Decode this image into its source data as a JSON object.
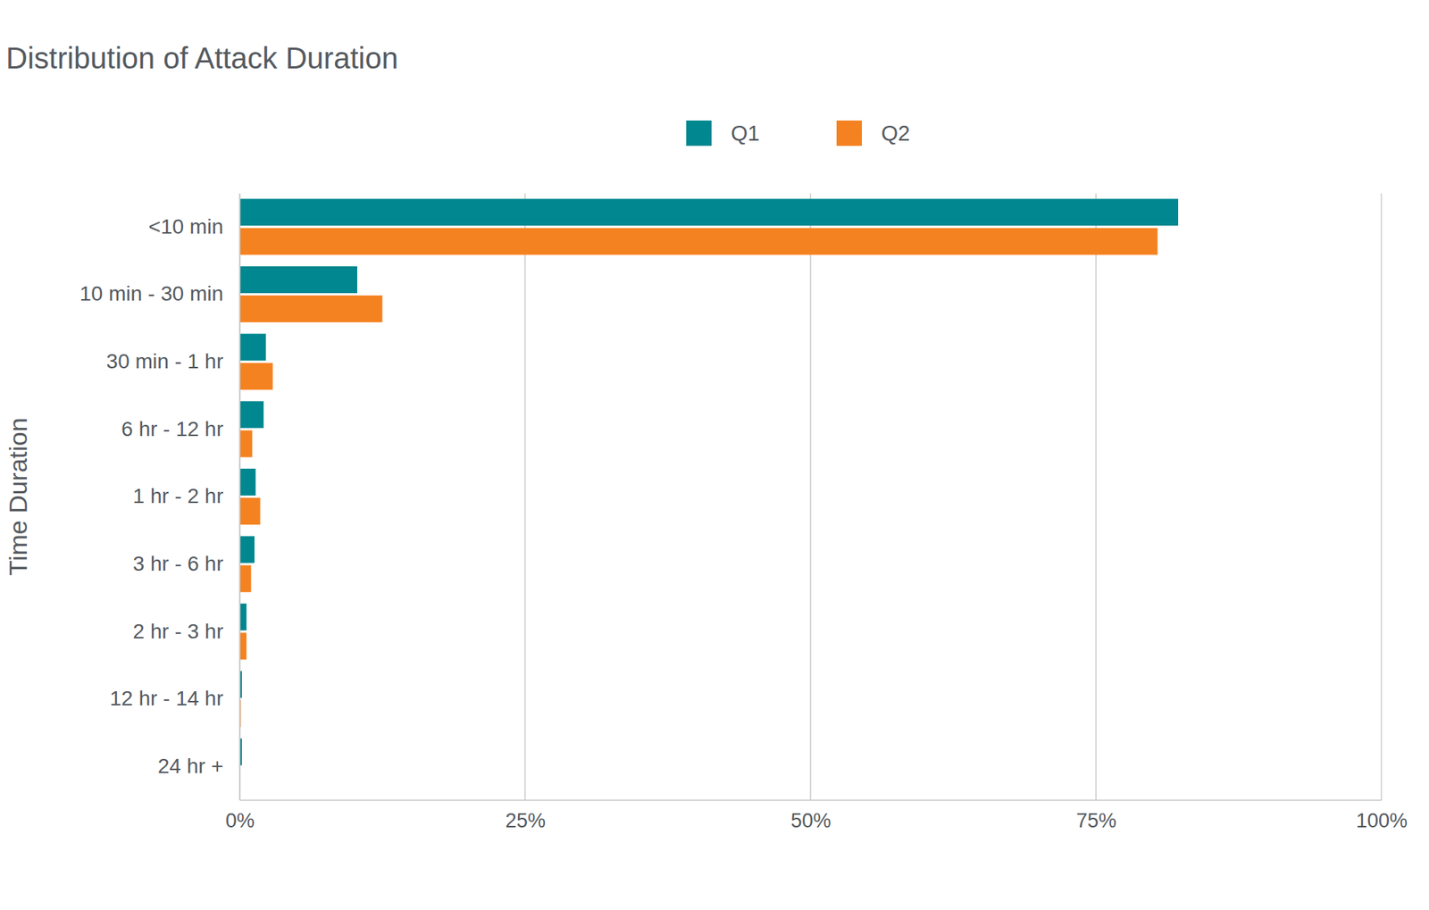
{
  "chart_data": {
    "type": "bar",
    "orientation": "horizontal",
    "title": "Distribution of Attack Duration",
    "y_label": "Time Duration",
    "categories": [
      "<10 min",
      "10 min - 30 min",
      "30 min - 1 hr",
      "6 hr - 12 hr",
      "1 hr - 2 hr",
      "3 hr - 6 hr",
      "2 hr - 3 hr",
      "12 hr - 14 hr",
      "24 hr +"
    ],
    "series": [
      {
        "name": "Q1",
        "color": "#00878f",
        "values": [
          82.2,
          10.3,
          2.3,
          2.1,
          1.4,
          1.3,
          0.6,
          0.2,
          0.2
        ]
      },
      {
        "name": "Q2",
        "color": "#f58220",
        "values": [
          80.4,
          12.5,
          2.9,
          1.1,
          1.8,
          1.0,
          0.6,
          0.1,
          0
        ]
      }
    ],
    "xlim": [
      0,
      100
    ],
    "xticks": [
      {
        "value": 0,
        "label": "0%"
      },
      {
        "value": 25,
        "label": "25%"
      },
      {
        "value": 50,
        "label": "50%"
      },
      {
        "value": 75,
        "label": "75%"
      },
      {
        "value": 100,
        "label": "100%"
      }
    ],
    "grid": true,
    "legend": "top"
  }
}
